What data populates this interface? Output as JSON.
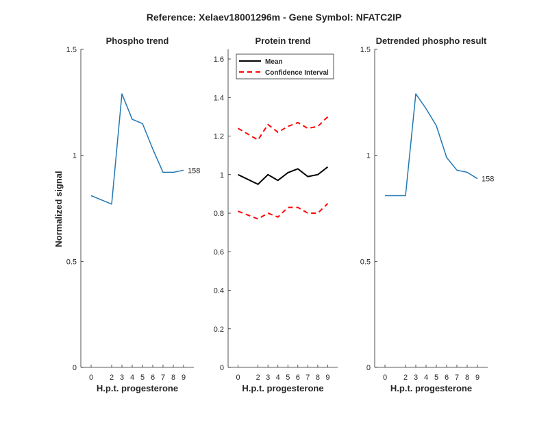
{
  "figure": {
    "title": "Reference:  Xelaev18001296m - Gene Symbol:  NFATC2IP",
    "ylabel": "Normalized signal"
  },
  "chart_data": [
    {
      "type": "line",
      "title": "Phospho trend",
      "xlabel": "H.p.t. progesterone",
      "x": [
        0,
        2,
        3,
        4,
        5,
        6,
        7,
        8,
        9
      ],
      "xticks": [
        "0",
        "2",
        "3",
        "4",
        "5",
        "6",
        "7",
        "8",
        "9"
      ],
      "ylim": [
        0,
        1.5
      ],
      "yticks": [
        "0",
        "0.5",
        "1",
        "1.5"
      ],
      "series": [
        {
          "name": "",
          "color": "#1f77b4",
          "values": [
            0.81,
            0.77,
            1.29,
            1.17,
            1.15,
            1.03,
            0.92,
            0.92,
            0.93
          ],
          "end_label": "158"
        }
      ]
    },
    {
      "type": "line",
      "title": "Protein trend",
      "xlabel": "H.p.t. progesterone",
      "x": [
        0,
        2,
        3,
        4,
        5,
        6,
        7,
        8,
        9
      ],
      "xticks": [
        "0",
        "2",
        "3",
        "4",
        "5",
        "6",
        "7",
        "8",
        "9"
      ],
      "ylim": [
        0,
        1.65
      ],
      "yticks": [
        "0",
        "0.2",
        "0.4",
        "0.6",
        "0.8",
        "1",
        "1.2",
        "1.4",
        "1.6"
      ],
      "legend": {
        "placement": "top-left",
        "entries": [
          "Mean",
          "Confidence Interval"
        ]
      },
      "series": [
        {
          "name": "Mean",
          "color": "#000000",
          "style": "solid",
          "values": [
            1.0,
            0.95,
            1.0,
            0.97,
            1.01,
            1.03,
            0.99,
            1.0,
            1.04
          ]
        },
        {
          "name": "Confidence Interval",
          "color": "#ff0000",
          "style": "dashed",
          "values": [
            1.24,
            1.18,
            1.26,
            1.22,
            1.25,
            1.27,
            1.24,
            1.25,
            1.3
          ]
        },
        {
          "name": "Confidence Interval",
          "color": "#ff0000",
          "style": "dashed",
          "values": [
            0.81,
            0.77,
            0.8,
            0.78,
            0.83,
            0.83,
            0.8,
            0.8,
            0.85
          ]
        }
      ]
    },
    {
      "type": "line",
      "title": "Detrended phospho result",
      "xlabel": "H.p.t. progesterone",
      "x": [
        0,
        2,
        3,
        4,
        5,
        6,
        7,
        8,
        9
      ],
      "xticks": [
        "0",
        "2",
        "3",
        "4",
        "5",
        "6",
        "7",
        "8",
        "9"
      ],
      "ylim": [
        0,
        1.5
      ],
      "yticks": [
        "0",
        "0.5",
        "1",
        "1.5"
      ],
      "series": [
        {
          "name": "",
          "color": "#1f77b4",
          "values": [
            0.81,
            0.81,
            1.29,
            1.22,
            1.14,
            0.99,
            0.93,
            0.92,
            0.89
          ],
          "end_label": "158"
        }
      ]
    }
  ]
}
